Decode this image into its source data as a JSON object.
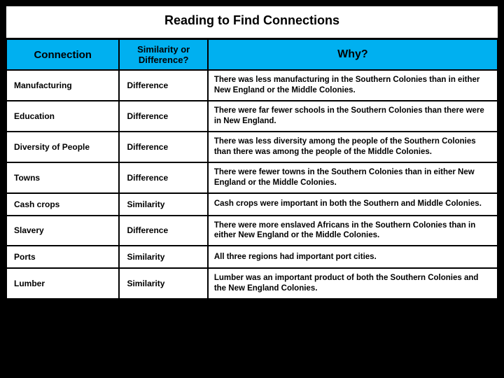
{
  "title": "Reading to Find Connections",
  "headers": {
    "connection": "Connection",
    "simdiff": "Similarity or Difference?",
    "why": "Why?"
  },
  "rows": [
    {
      "connection": "Manufacturing",
      "type": "Difference",
      "why": "There was less manufacturing in the Southern Colonies than in either New England or the Middle Colonies."
    },
    {
      "connection": "Education",
      "type": "Difference",
      "why": "There were far fewer schools in the Southern Colonies than there were in New England."
    },
    {
      "connection": "Diversity of People",
      "type": "Difference",
      "why": "There was less diversity among the people of the Southern Colonies than there was among the people of the Middle Colonies."
    },
    {
      "connection": "Towns",
      "type": "Difference",
      "why": "There were fewer towns in the Southern Colonies than in either New England or the Middle Colonies."
    },
    {
      "connection": "Cash crops",
      "type": "Similarity",
      "why": "Cash crops were important in both the Southern and Middle Colonies."
    },
    {
      "connection": "Slavery",
      "type": "Difference",
      "why": "There were more enslaved Africans in the Southern Colonies than in either New England or the Middle Colonies."
    },
    {
      "connection": "Ports",
      "type": "Similarity",
      "why": "All three regions had important port cities."
    },
    {
      "connection": "Lumber",
      "type": "Similarity",
      "why": "Lumber was an important product of both the Southern Colonies and the New England Colonies."
    }
  ]
}
